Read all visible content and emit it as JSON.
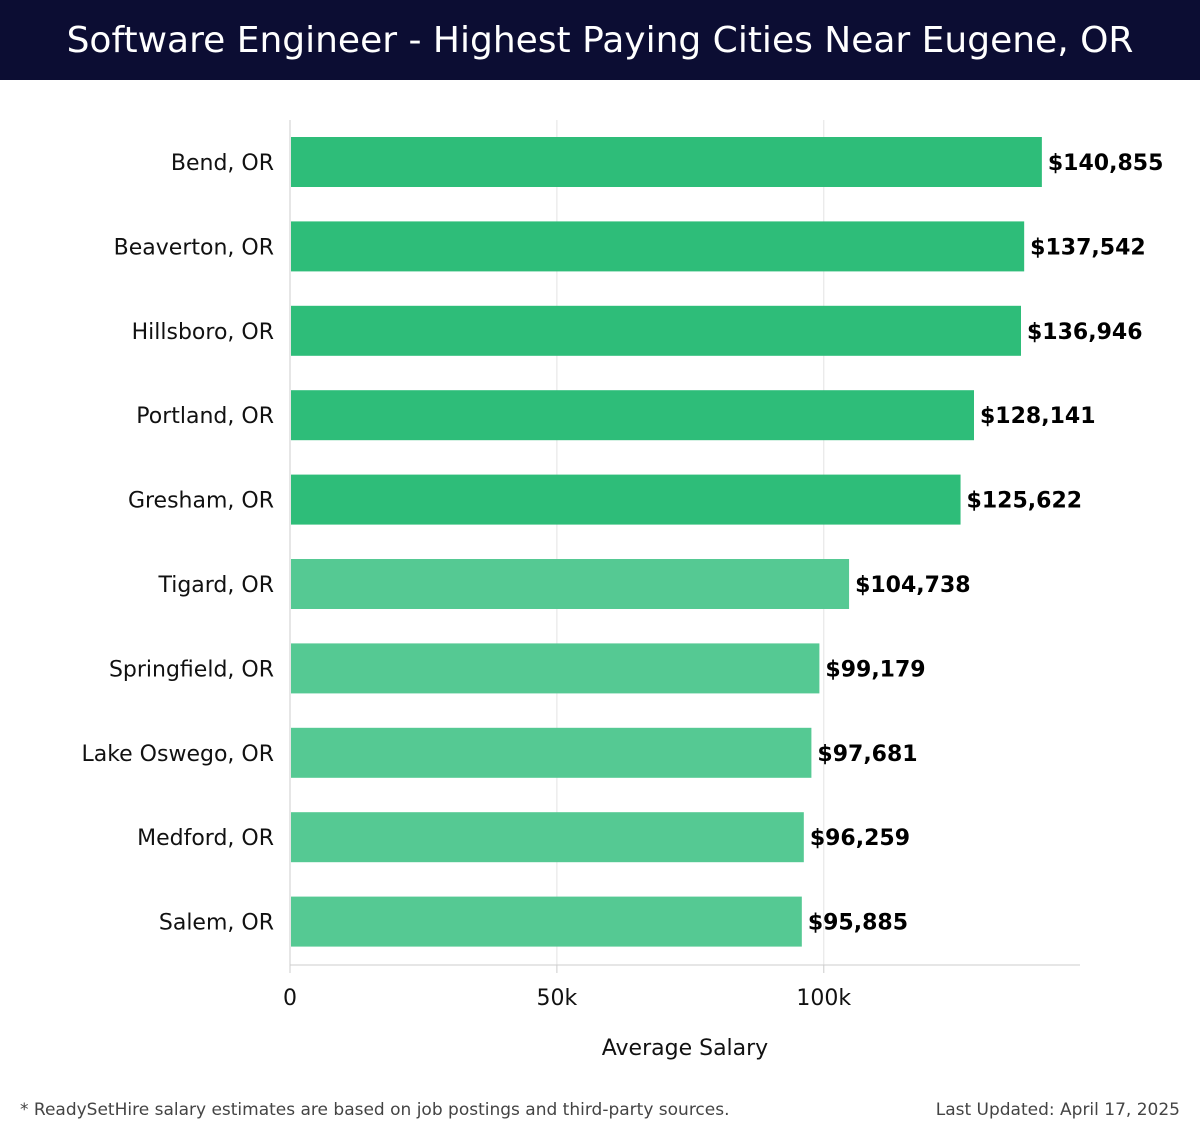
{
  "header": {
    "title": "Software Engineer - Highest Paying Cities Near Eugene, OR"
  },
  "chart_data": {
    "type": "bar",
    "orientation": "horizontal",
    "title": "Software Engineer - Highest Paying Cities Near Eugene, OR",
    "xlabel": "Average Salary",
    "ylabel": "",
    "categories": [
      "Bend, OR",
      "Beaverton, OR",
      "Hillsboro, OR",
      "Portland, OR",
      "Gresham, OR",
      "Tigard, OR",
      "Springfield, OR",
      "Lake Oswego, OR",
      "Medford, OR",
      "Salem, OR"
    ],
    "values": [
      140855,
      137542,
      136946,
      128141,
      125622,
      104738,
      99179,
      97681,
      96259,
      95885
    ],
    "value_labels": [
      "$140,855",
      "$137,542",
      "$136,946",
      "$128,141",
      "$125,622",
      "$104,738",
      "$99,179",
      "$97,681",
      "$96,259",
      "$95,885"
    ],
    "xlim": [
      0,
      148000
    ],
    "x_ticks": [
      0,
      50000,
      100000
    ],
    "x_tick_labels": [
      "0",
      "50k",
      "100k"
    ],
    "grid": "vertical",
    "colors": {
      "top_bars": "#2ebd79",
      "other_bars": "#55c993",
      "gridline": "#e3e3e3",
      "axis": "#cccccc"
    },
    "highlighted_count": 5
  },
  "footer": {
    "note": "* ReadySetHire salary estimates are based on job postings and third-party sources.",
    "last_updated": "Last Updated: April 17, 2025"
  }
}
